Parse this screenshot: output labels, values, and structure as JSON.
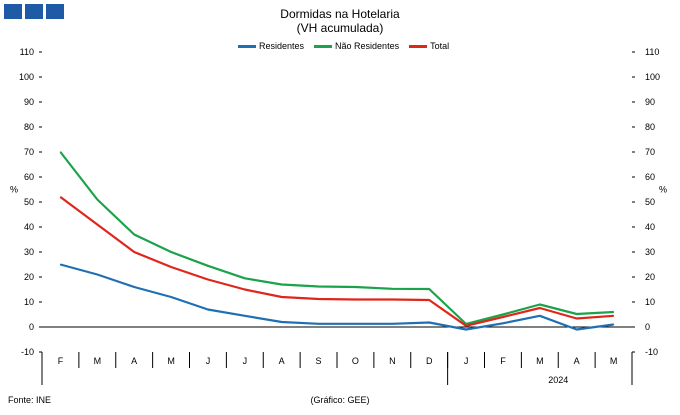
{
  "header": {
    "title_line1": "Dormidas na Hotelaria",
    "title_line2": "(VH acumulada)"
  },
  "colors": {
    "logo": "#1f5aa6",
    "residentes": "#1f6fb5",
    "nao_residentes": "#1aa34a",
    "total": "#e0261b",
    "axis": "#000000"
  },
  "footer": {
    "source": "Fonte: INE",
    "credit": "(Gráfico: GEE)"
  },
  "chart_data": {
    "type": "line",
    "title": "Dormidas na Hotelaria (VH acumulada)",
    "ylabel_left": "%",
    "ylabel_right": "%",
    "ylim": [
      -10,
      110
    ],
    "yticks": [
      -10,
      0,
      10,
      20,
      30,
      40,
      50,
      60,
      70,
      80,
      90,
      100,
      110
    ],
    "categories": [
      "F",
      "M",
      "A",
      "M",
      "J",
      "J",
      "A",
      "S",
      "O",
      "N",
      "D",
      "J",
      "F",
      "M",
      "A",
      "M"
    ],
    "year_labels": [
      {
        "label": "2024",
        "start_index": 11,
        "end_index": 15
      }
    ],
    "legend_position": "top",
    "grid": false,
    "series": [
      {
        "name": "Residentes",
        "color": "#1f6fb5",
        "values": [
          25,
          21,
          16,
          12,
          7,
          4.5,
          2,
          1.3,
          1.3,
          1.3,
          1.8,
          -1,
          1.5,
          4.5,
          -1,
          1
        ]
      },
      {
        "name": "Não Residentes",
        "color": "#1aa34a",
        "values": [
          70,
          51,
          37,
          30,
          24.5,
          19.5,
          17,
          16.2,
          16,
          15.3,
          15.2,
          1.2,
          5,
          9,
          5.2,
          6
        ]
      },
      {
        "name": "Total",
        "color": "#e0261b",
        "values": [
          52,
          41,
          30,
          24,
          19,
          15,
          12,
          11.2,
          11,
          11,
          10.8,
          0.5,
          4,
          7.6,
          3.4,
          4.5
        ]
      }
    ]
  }
}
